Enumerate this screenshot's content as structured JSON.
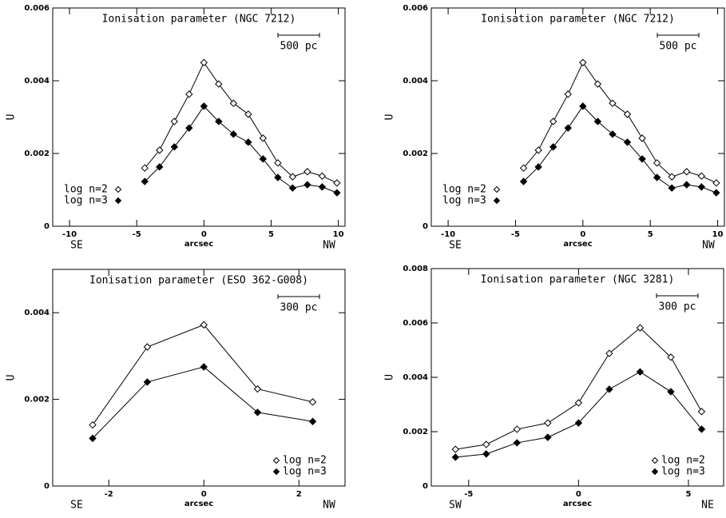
{
  "chart_data": [
    {
      "type": "line",
      "title": "Ionisation parameter (NGC 7212)",
      "xlabel": "arcsec",
      "ylabel": "U",
      "direction_labels": [
        "SE",
        "NW"
      ],
      "scale_bar": "500 pc",
      "legend": "lower left",
      "x": [
        -4.4,
        -3.3,
        -2.2,
        -1.1,
        0,
        1.1,
        2.2,
        3.3,
        4.4,
        5.5,
        6.6,
        7.7,
        8.8,
        9.9
      ],
      "series": [
        {
          "name": "log n=2",
          "marker": "open",
          "color": "#000000",
          "values": [
            0.0016,
            0.00209,
            0.00288,
            0.00363,
            0.0045,
            0.00391,
            0.00338,
            0.00308,
            0.00242,
            0.00174,
            0.00136,
            0.0015,
            0.00138,
            0.00119
          ]
        },
        {
          "name": "log n=3",
          "marker": "filled",
          "color": "#000000",
          "values": [
            0.00123,
            0.00163,
            0.00218,
            0.0027,
            0.0033,
            0.00288,
            0.00253,
            0.00231,
            0.00185,
            0.00134,
            0.00105,
            0.00114,
            0.00108,
            0.00092
          ]
        }
      ],
      "xlim": [
        -11.25,
        10.5
      ],
      "ylim": [
        0,
        0.006
      ],
      "xticks": [
        -10,
        -5,
        0,
        5,
        10
      ],
      "yticks": [
        0,
        0.002,
        0.004,
        0.006
      ]
    },
    {
      "type": "line",
      "title": "Ionisation parameter (NGC 7212)",
      "xlabel": "arcsec",
      "ylabel": "U",
      "direction_labels": [
        "SE",
        "NW"
      ],
      "scale_bar": "500 pc",
      "legend": "lower left",
      "x": [
        -4.4,
        -3.3,
        -2.2,
        -1.1,
        0,
        1.1,
        2.2,
        3.3,
        4.4,
        5.5,
        6.6,
        7.7,
        8.8,
        9.9
      ],
      "series": [
        {
          "name": "log n=2",
          "marker": "open",
          "color": "#000000",
          "values": [
            0.0016,
            0.00209,
            0.00288,
            0.00363,
            0.0045,
            0.00391,
            0.00338,
            0.00308,
            0.00242,
            0.00174,
            0.00136,
            0.0015,
            0.00138,
            0.00119
          ]
        },
        {
          "name": "log n=3",
          "marker": "filled",
          "color": "#000000",
          "values": [
            0.00123,
            0.00163,
            0.00218,
            0.0027,
            0.0033,
            0.00288,
            0.00253,
            0.00231,
            0.00185,
            0.00134,
            0.00105,
            0.00114,
            0.00108,
            0.00092
          ]
        }
      ],
      "xlim": [
        -11.25,
        10.5
      ],
      "ylim": [
        0,
        0.006
      ],
      "xticks": [
        -10,
        -5,
        0,
        5,
        10
      ],
      "yticks": [
        0,
        0.002,
        0.004,
        0.006
      ]
    },
    {
      "type": "line",
      "title": "Ionisation parameter (ESO 362-G008)",
      "xlabel": "arcsec",
      "ylabel": "U",
      "direction_labels": [
        "SE",
        "NW"
      ],
      "scale_bar": "300 pc",
      "legend": "lower right",
      "x": [
        -2.34,
        -1.19,
        0,
        1.13,
        2.29
      ],
      "series": [
        {
          "name": "log n=2",
          "marker": "open",
          "color": "#000000",
          "values": [
            0.00141,
            0.00321,
            0.00372,
            0.00224,
            0.00194
          ]
        },
        {
          "name": "log n=3",
          "marker": "filled",
          "color": "#000000",
          "values": [
            0.0011,
            0.0024,
            0.00275,
            0.0017,
            0.00149
          ]
        }
      ],
      "xlim": [
        -3.18,
        2.97
      ],
      "ylim": [
        0,
        0.005
      ],
      "xticks": [
        -2,
        0,
        2
      ],
      "yticks": [
        0,
        0.002,
        0.004
      ]
    },
    {
      "type": "line",
      "title": "Ionisation parameter (NGC 3281)",
      "xlabel": "arcsec",
      "ylabel": "U",
      "direction_labels": [
        "SW",
        "NE"
      ],
      "scale_bar": "300 pc",
      "legend": "lower right",
      "x": [
        -5.6,
        -4.2,
        -2.8,
        -1.4,
        0,
        1.4,
        2.8,
        4.2,
        5.6
      ],
      "series": [
        {
          "name": "log n=2",
          "marker": "open",
          "color": "#000000",
          "values": [
            0.00135,
            0.00153,
            0.00209,
            0.00232,
            0.00306,
            0.00488,
            0.00582,
            0.00474,
            0.00274
          ]
        },
        {
          "name": "log n=3",
          "marker": "filled",
          "color": "#000000",
          "values": [
            0.00106,
            0.00118,
            0.00159,
            0.00179,
            0.00232,
            0.00356,
            0.0042,
            0.00347,
            0.00209
          ]
        }
      ],
      "xlim": [
        -6.7,
        6.6
      ],
      "ylim": [
        0,
        0.008
      ],
      "xticks": [
        -5,
        0,
        5
      ],
      "yticks": [
        0,
        0.002,
        0.004,
        0.006,
        0.008
      ]
    }
  ]
}
